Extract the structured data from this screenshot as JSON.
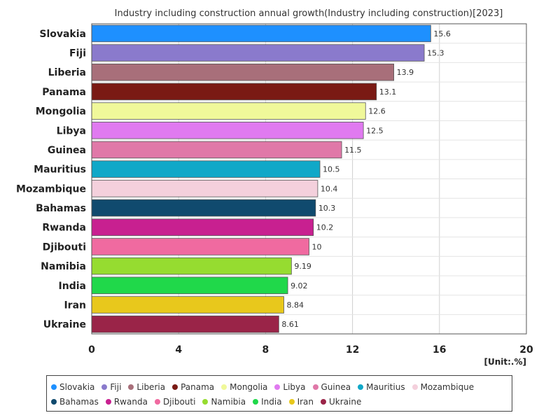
{
  "chart_data": {
    "type": "bar",
    "orientation": "horizontal",
    "title": "Industry including construction annual growth(Industry including construction)[2023]",
    "unit_label": "[Unit:.%]",
    "xlim": [
      0,
      20
    ],
    "x_ticks": [
      "0",
      "4",
      "8",
      "12",
      "16",
      "20"
    ],
    "grid": true,
    "legend_position": "bottom",
    "categories": [
      "Slovakia",
      "Fiji",
      "Liberia",
      "Panama",
      "Mongolia",
      "Libya",
      "Guinea",
      "Mauritius",
      "Mozambique",
      "Bahamas",
      "Rwanda",
      "Djibouti",
      "Namibia",
      "India",
      "Iran",
      "Ukraine"
    ],
    "values": [
      15.6,
      15.3,
      13.9,
      13.1,
      12.6,
      12.5,
      11.5,
      10.5,
      10.4,
      10.3,
      10.2,
      10,
      9.19,
      9.02,
      8.84,
      8.61
    ],
    "value_labels": [
      "15.6",
      "15.3",
      "13.9",
      "13.1",
      "12.6",
      "12.5",
      "11.5",
      "10.5",
      "10.4",
      "10.3",
      "10.2",
      "10",
      "9.19",
      "9.02",
      "8.84",
      "8.61"
    ],
    "colors": [
      "#1e90ff",
      "#8a7acc",
      "#a86f7a",
      "#7a1a14",
      "#f0f89a",
      "#e07af0",
      "#e078a8",
      "#10a8c8",
      "#f4d0dc",
      "#104a6e",
      "#c82090",
      "#f06aa0",
      "#96dc30",
      "#20d84a",
      "#e8c81c",
      "#9a2448"
    ]
  }
}
